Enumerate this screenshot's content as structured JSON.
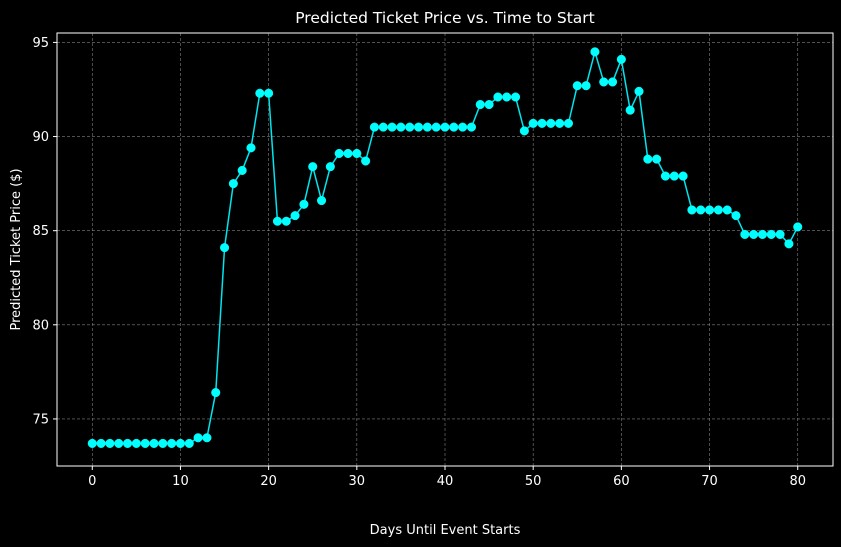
{
  "colors": {
    "background": "#000000",
    "line": "#00e5ee",
    "marker": "#00ffff",
    "grid": "#808080",
    "axes": "#ffffff",
    "text": "#ffffff"
  },
  "chart_data": {
    "type": "line",
    "title": "Predicted Ticket Price vs. Time to Start",
    "xlabel": "Days Until Event Starts",
    "ylabel": "Predicted Ticket Price ($)",
    "xlim": [
      -4,
      84
    ],
    "ylim": [
      72.5,
      95.5
    ],
    "xticks": [
      0,
      10,
      20,
      30,
      40,
      50,
      60,
      70,
      80
    ],
    "yticks": [
      75,
      80,
      85,
      90,
      95
    ],
    "grid": true,
    "grid_style": "dashed",
    "marker": "circle",
    "series": [
      {
        "x": [
          0,
          1,
          2,
          3,
          4,
          5,
          6,
          7,
          8,
          9,
          10,
          11,
          12,
          13,
          14,
          15,
          16,
          17,
          18,
          19,
          20,
          21,
          22,
          23,
          24,
          25,
          26,
          27,
          28,
          29,
          30,
          31,
          32,
          33,
          34,
          35,
          36,
          37,
          38,
          39,
          40,
          41,
          42,
          43,
          44,
          45,
          46,
          47,
          48,
          49,
          50,
          51,
          52,
          53,
          54,
          55,
          56,
          57,
          58,
          59,
          60,
          61,
          62,
          63,
          64,
          65,
          66,
          67,
          68,
          69,
          70,
          71,
          72,
          73,
          74,
          75,
          76,
          77,
          78,
          79,
          80
        ],
        "values": [
          73.7,
          73.7,
          73.7,
          73.7,
          73.7,
          73.7,
          73.7,
          73.7,
          73.7,
          73.7,
          73.7,
          73.7,
          74.0,
          74.0,
          76.4,
          84.1,
          87.5,
          88.2,
          89.4,
          92.3,
          92.3,
          85.5,
          85.5,
          85.8,
          86.4,
          88.4,
          86.6,
          88.4,
          89.1,
          89.1,
          89.1,
          88.7,
          90.5,
          90.5,
          90.5,
          90.5,
          90.5,
          90.5,
          90.5,
          90.5,
          90.5,
          90.5,
          90.5,
          90.5,
          91.7,
          91.7,
          92.1,
          92.1,
          92.1,
          90.3,
          90.7,
          90.7,
          90.7,
          90.7,
          90.7,
          92.7,
          92.7,
          94.5,
          92.9,
          92.9,
          94.1,
          91.4,
          92.4,
          88.8,
          88.8,
          87.9,
          87.9,
          87.9,
          86.1,
          86.1,
          86.1,
          86.1,
          86.1,
          85.8,
          84.8,
          84.8,
          84.8,
          84.8,
          84.8,
          84.3,
          85.2
        ]
      }
    ]
  }
}
